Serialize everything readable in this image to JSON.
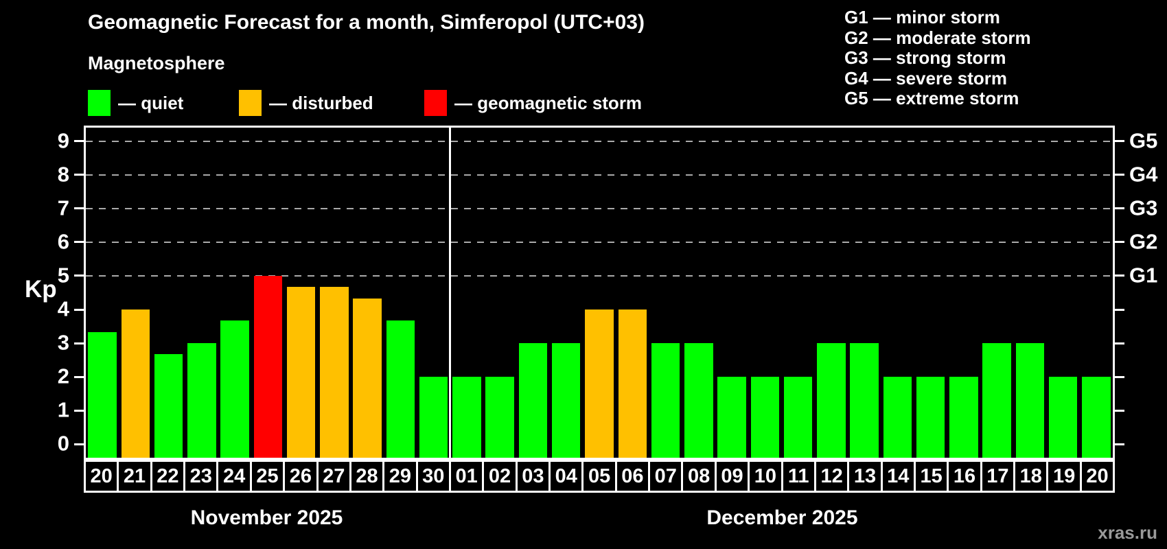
{
  "header": {
    "title": "Geomagnetic Forecast for a month, Simferopol (UTC+03)"
  },
  "magnetosphere_legend": {
    "title": "Magnetosphere",
    "items": [
      {
        "name": "quiet",
        "label": "— quiet",
        "color": "#00ff00"
      },
      {
        "name": "disturbed",
        "label": "— disturbed",
        "color": "#ffc000"
      },
      {
        "name": "storm",
        "label": "— geomagnetic storm",
        "color": "#ff0000"
      }
    ]
  },
  "g_scale_legend": {
    "items": [
      {
        "label": "G1 — minor storm"
      },
      {
        "label": "G2 — moderate storm"
      },
      {
        "label": "G3 — strong storm"
      },
      {
        "label": "G4 — severe storm"
      },
      {
        "label": "G5 — extreme storm"
      }
    ]
  },
  "watermark": "xras.ru",
  "chart_data": {
    "type": "bar",
    "title": "Geomagnetic Forecast for a month, Simferopol (UTC+03)",
    "ylabel": "Kp",
    "ylim": [
      0,
      9.4
    ],
    "baseline_pad": 0.4,
    "y_ticks": [
      0,
      1,
      2,
      3,
      4,
      5,
      6,
      7,
      8,
      9
    ],
    "gridlines_at": [
      5,
      6,
      7,
      8,
      9
    ],
    "grid": "dashed horizontal lines at storm levels G1–G5",
    "legend_position": "top-left",
    "right_axis_labels": [
      {
        "value": 5,
        "label": "G1"
      },
      {
        "value": 6,
        "label": "G2"
      },
      {
        "value": 7,
        "label": "G3"
      },
      {
        "value": 8,
        "label": "G4"
      },
      {
        "value": 9,
        "label": "G5"
      }
    ],
    "status_colors": {
      "quiet": "#00ff00",
      "disturbed": "#ffc000",
      "storm": "#ff0000"
    },
    "months": [
      {
        "label": "November 2025",
        "days": 11
      },
      {
        "label": "December 2025",
        "days": 20
      }
    ],
    "categories": [
      "20",
      "21",
      "22",
      "23",
      "24",
      "25",
      "26",
      "27",
      "28",
      "29",
      "30",
      "01",
      "02",
      "03",
      "04",
      "05",
      "06",
      "07",
      "08",
      "09",
      "10",
      "11",
      "12",
      "13",
      "14",
      "15",
      "16",
      "17",
      "18",
      "19",
      "20"
    ],
    "values": [
      3.33,
      4,
      2.67,
      3,
      3.67,
      5,
      4.67,
      4.67,
      4.33,
      3.67,
      2,
      2,
      2,
      3,
      3,
      4,
      4,
      3,
      3,
      2,
      2,
      2,
      3,
      3,
      2,
      2,
      2,
      3,
      3,
      2,
      2
    ],
    "statuses": [
      "quiet",
      "disturbed",
      "quiet",
      "quiet",
      "quiet",
      "storm",
      "disturbed",
      "disturbed",
      "disturbed",
      "quiet",
      "quiet",
      "quiet",
      "quiet",
      "quiet",
      "quiet",
      "disturbed",
      "disturbed",
      "quiet",
      "quiet",
      "quiet",
      "quiet",
      "quiet",
      "quiet",
      "quiet",
      "quiet",
      "quiet",
      "quiet",
      "quiet",
      "quiet",
      "quiet",
      "quiet"
    ]
  }
}
